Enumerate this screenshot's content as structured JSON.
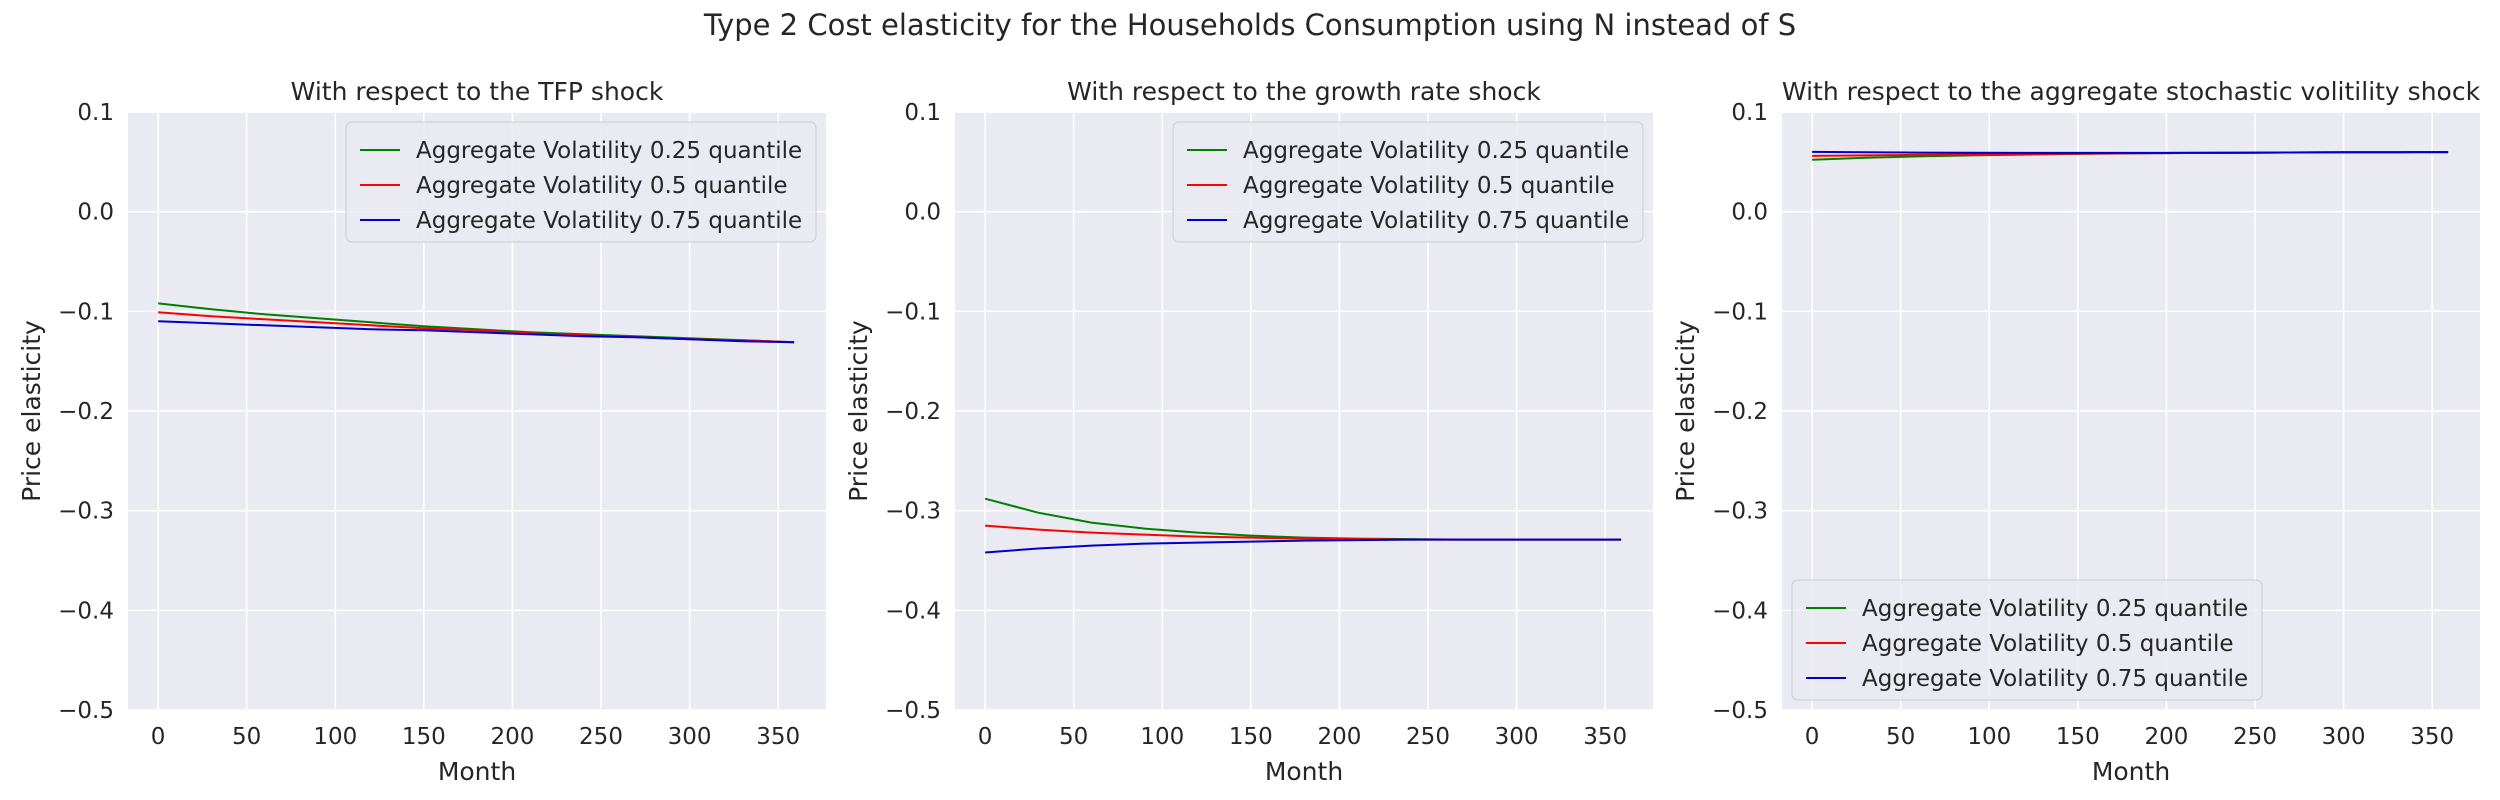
{
  "figure": {
    "title": "Type 2 Cost elasticity for the Households Consumption using N instead of S"
  },
  "chart_data": [
    {
      "type": "line",
      "title": "With respect to the TFP shock",
      "xlabel": "Month",
      "ylabel": "Price elasticity",
      "xlim": [
        -17,
        377
      ],
      "ylim": [
        -0.5,
        0.1
      ],
      "xticks": [
        0,
        50,
        100,
        150,
        200,
        250,
        300,
        350
      ],
      "yticks": [
        -0.5,
        -0.4,
        -0.3,
        -0.2,
        -0.1,
        0.0,
        0.1
      ],
      "grid": true,
      "legend_position": "top-right",
      "x": [
        0,
        30,
        60,
        90,
        120,
        150,
        180,
        210,
        240,
        270,
        300,
        330,
        359
      ],
      "series": [
        {
          "name": "Aggregate Volatility 0.25 quantile",
          "color": "#008000",
          "values": [
            -0.092,
            -0.098,
            -0.103,
            -0.107,
            -0.111,
            -0.115,
            -0.118,
            -0.121,
            -0.123,
            -0.125,
            -0.127,
            -0.129,
            -0.131
          ]
        },
        {
          "name": "Aggregate Volatility 0.5 quantile",
          "color": "#ff0000",
          "values": [
            -0.101,
            -0.105,
            -0.108,
            -0.111,
            -0.114,
            -0.117,
            -0.119,
            -0.122,
            -0.124,
            -0.126,
            -0.128,
            -0.129,
            -0.131
          ]
        },
        {
          "name": "Aggregate Volatility 0.75 quantile",
          "color": "#0000cc",
          "values": [
            -0.11,
            -0.112,
            -0.114,
            -0.116,
            -0.118,
            -0.119,
            -0.121,
            -0.123,
            -0.125,
            -0.126,
            -0.128,
            -0.13,
            -0.131
          ]
        }
      ]
    },
    {
      "type": "line",
      "title": "With respect to the growth rate shock",
      "xlabel": "Month",
      "ylabel": "Price elasticity",
      "xlim": [
        -17,
        377
      ],
      "ylim": [
        -0.5,
        0.1
      ],
      "xticks": [
        0,
        50,
        100,
        150,
        200,
        250,
        300,
        350
      ],
      "yticks": [
        -0.5,
        -0.4,
        -0.3,
        -0.2,
        -0.1,
        0.0,
        0.1
      ],
      "grid": true,
      "legend_position": "top-right",
      "x": [
        0,
        30,
        60,
        90,
        120,
        150,
        180,
        210,
        240,
        270,
        300,
        330,
        359
      ],
      "series": [
        {
          "name": "Aggregate Volatility 0.25 quantile",
          "color": "#008000",
          "values": [
            -0.288,
            -0.302,
            -0.312,
            -0.318,
            -0.322,
            -0.325,
            -0.327,
            -0.328,
            -0.3285,
            -0.329,
            -0.329,
            -0.329,
            -0.329
          ]
        },
        {
          "name": "Aggregate Volatility 0.5 quantile",
          "color": "#ff0000",
          "values": [
            -0.315,
            -0.319,
            -0.322,
            -0.324,
            -0.326,
            -0.327,
            -0.328,
            -0.3285,
            -0.329,
            -0.329,
            -0.329,
            -0.329,
            -0.329
          ]
        },
        {
          "name": "Aggregate Volatility 0.75 quantile",
          "color": "#0000cc",
          "values": [
            -0.342,
            -0.338,
            -0.335,
            -0.333,
            -0.332,
            -0.331,
            -0.33,
            -0.3295,
            -0.329,
            -0.329,
            -0.329,
            -0.329,
            -0.329
          ]
        }
      ]
    },
    {
      "type": "line",
      "title": "With respect to the aggregate stochastic volitility shock",
      "xlabel": "Month",
      "ylabel": "Price elasticity",
      "xlim": [
        -17,
        377
      ],
      "ylim": [
        -0.5,
        0.1
      ],
      "xticks": [
        0,
        50,
        100,
        150,
        200,
        250,
        300,
        350
      ],
      "yticks": [
        -0.5,
        -0.4,
        -0.3,
        -0.2,
        -0.1,
        0.0,
        0.1
      ],
      "grid": true,
      "legend_position": "bottom-left",
      "x": [
        0,
        30,
        60,
        90,
        120,
        150,
        180,
        210,
        240,
        270,
        300,
        330,
        359
      ],
      "series": [
        {
          "name": "Aggregate Volatility 0.25 quantile",
          "color": "#008000",
          "values": [
            0.052,
            0.054,
            0.0555,
            0.0565,
            0.0573,
            0.058,
            0.0585,
            0.0589,
            0.0592,
            0.0594,
            0.0596,
            0.0597,
            0.0598
          ]
        },
        {
          "name": "Aggregate Volatility 0.5 quantile",
          "color": "#ff0000",
          "values": [
            0.056,
            0.0565,
            0.057,
            0.0575,
            0.058,
            0.0583,
            0.0586,
            0.0589,
            0.0592,
            0.0594,
            0.0596,
            0.0597,
            0.0598
          ]
        },
        {
          "name": "Aggregate Volatility 0.75 quantile",
          "color": "#0000cc",
          "values": [
            0.06,
            0.0596,
            0.0593,
            0.0591,
            0.059,
            0.059,
            0.059,
            0.0591,
            0.0592,
            0.0594,
            0.0596,
            0.0597,
            0.0598
          ]
        }
      ]
    }
  ]
}
